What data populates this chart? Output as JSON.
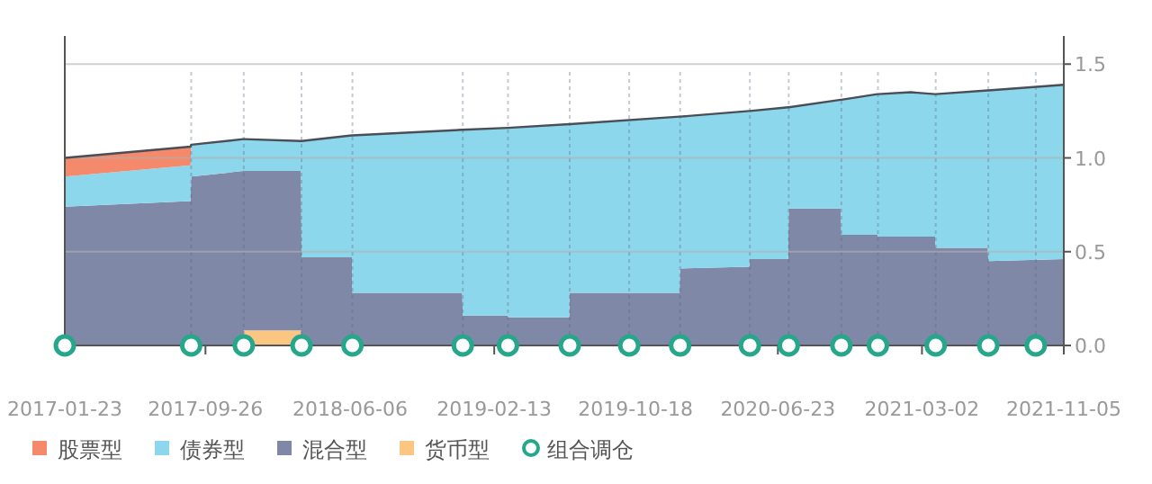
{
  "chart_data": {
    "type": "area",
    "stacked": true,
    "x": [
      "2017-01-23",
      "2017-08-31",
      "2017-09-01",
      "2017-12-01",
      "2017-12-02",
      "2018-03-12",
      "2018-03-13",
      "2018-06-09",
      "2018-06-10",
      "2018-12-19",
      "2018-12-20",
      "2019-03-08",
      "2019-03-09",
      "2019-06-24",
      "2019-06-25",
      "2020-01-03",
      "2020-01-04",
      "2020-05-04",
      "2020-05-05",
      "2020-07-11",
      "2020-07-12",
      "2020-10-11",
      "2020-10-12",
      "2020-12-14",
      "2020-12-15",
      "2021-02-10",
      "2021-03-25",
      "2021-03-26",
      "2021-06-25",
      "2021-06-26",
      "2021-11-05"
    ],
    "series": [
      {
        "name": "货币型",
        "color": "#fbc682",
        "values": [
          0,
          0,
          0,
          0,
          0.08,
          0.08,
          0,
          0,
          0,
          0,
          0,
          0,
          0,
          0,
          0,
          0,
          0,
          0,
          0,
          0,
          0,
          0,
          0,
          0,
          0,
          0,
          0,
          0,
          0,
          0,
          0
        ]
      },
      {
        "name": "混合型",
        "color": "#8088a8",
        "values": [
          0.74,
          0.77,
          0.9,
          0.93,
          0.85,
          0.85,
          0.47,
          0.47,
          0.28,
          0.28,
          0.16,
          0.16,
          0.15,
          0.15,
          0.28,
          0.28,
          0.41,
          0.42,
          0.46,
          0.46,
          0.73,
          0.73,
          0.59,
          0.59,
          0.58,
          0.58,
          0.58,
          0.52,
          0.52,
          0.45,
          0.46
        ]
      },
      {
        "name": "债券型",
        "color": "#8dd7ec",
        "values": [
          0.16,
          0.19,
          0.17,
          0.17,
          0.17,
          0.16,
          0.62,
          0.65,
          0.84,
          0.87,
          0.99,
          1.0,
          1.01,
          1.03,
          0.9,
          0.94,
          0.81,
          0.83,
          0.79,
          0.81,
          0.54,
          0.58,
          0.72,
          0.75,
          0.76,
          0.77,
          0.76,
          0.82,
          0.84,
          0.91,
          0.93
        ]
      },
      {
        "name": "股票型",
        "color": "#f4896b",
        "values": [
          0.1,
          0.1,
          0,
          0,
          0,
          0,
          0,
          0,
          0,
          0,
          0,
          0,
          0,
          0,
          0,
          0,
          0,
          0,
          0,
          0,
          0,
          0,
          0,
          0,
          0,
          0,
          0,
          0,
          0,
          0,
          0
        ]
      },
      {
        "name": "组合调仓",
        "type": "scatter",
        "marker": "circle",
        "color": "#26a68a",
        "x": [
          "2017-01-23",
          "2017-09-01",
          "2017-12-02",
          "2018-03-13",
          "2018-06-10",
          "2018-12-20",
          "2019-03-09",
          "2019-06-25",
          "2019-10-07",
          "2020-01-04",
          "2020-05-05",
          "2020-07-12",
          "2020-10-12",
          "2020-12-15",
          "2021-03-26",
          "2021-06-26",
          "2021-09-17"
        ],
        "values": [
          0,
          0,
          0,
          0,
          0,
          0,
          0,
          0,
          0,
          0,
          0,
          0,
          0,
          0,
          0,
          0,
          0
        ]
      }
    ],
    "xlim": [
      "2017-01-23",
      "2021-11-05"
    ],
    "xticks": [
      "2017-01-23",
      "2017-09-26",
      "2018-06-06",
      "2019-02-13",
      "2019-10-18",
      "2020-06-23",
      "2021-03-02",
      "2021-11-05"
    ],
    "ylim": [
      0,
      1.65
    ],
    "yticks": [
      {
        "value": 0,
        "label": "0.0"
      },
      0.5,
      {
        "value": 1,
        "label": "1.0"
      },
      1.5
    ],
    "grid": "y",
    "legend": "bottom"
  }
}
